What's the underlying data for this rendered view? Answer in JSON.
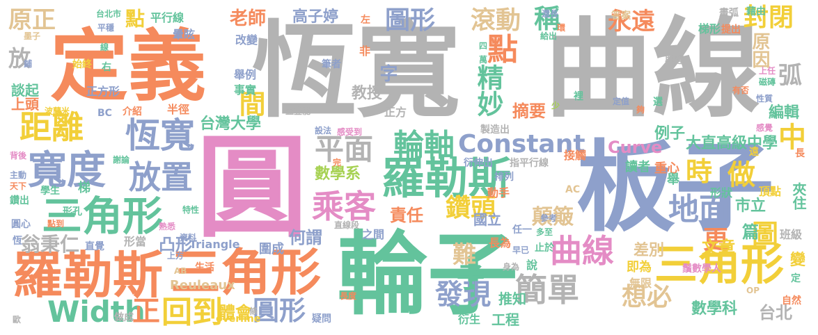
{
  "palette": {
    "orange": "#f58a5c",
    "green": "#63c39c",
    "blue": "#8ea0cb",
    "pink": "#e48cc5",
    "gray": "#b3b3b3",
    "lime": "#a6d152",
    "yellow": "#f2cf39",
    "tan": "#e2c493"
  },
  "words": [
    {
      "text": "恆寬",
      "color": "#b3b3b3"
    },
    {
      "text": "曲線",
      "color": "#b3b3b3"
    },
    {
      "text": "定義",
      "color": "#f58a5c"
    },
    {
      "text": "圓",
      "color": "#e48cc5"
    },
    {
      "text": "板子",
      "color": "#8ea0cb"
    },
    {
      "text": "輪子",
      "color": "#63c39c"
    },
    {
      "text": "羅勒斯",
      "color": "#f58a5c"
    },
    {
      "text": "三角形",
      "color": "#f58a5c"
    },
    {
      "text": "羅勒斯",
      "color": "#63c39c"
    },
    {
      "text": "三角形",
      "color": "#63c39c"
    },
    {
      "text": "寬度",
      "color": "#8ea0cb"
    },
    {
      "text": "三角形",
      "color": "#f2cf39"
    },
    {
      "text": "曲線",
      "color": "#e48cc5"
    },
    {
      "text": "恆寬",
      "color": "#8ea0cb"
    },
    {
      "text": "距離",
      "color": "#f2cf39"
    },
    {
      "text": "原正",
      "color": "#e2c493"
    },
    {
      "text": "放置",
      "color": "#8ea0cb"
    },
    {
      "text": "乘客",
      "color": "#e48cc5"
    },
    {
      "text": "平面",
      "color": "#b3b3b3"
    },
    {
      "text": "輪軸",
      "color": "#63c39c"
    },
    {
      "text": "Constant",
      "color": "#8ea0cb"
    },
    {
      "text": "Width",
      "color": "#63c39c"
    },
    {
      "text": "回到",
      "color": "#f2cf39"
    },
    {
      "text": "圓形",
      "color": "#8ea0cb"
    },
    {
      "text": "正",
      "color": "#f58a5c"
    },
    {
      "text": "發現",
      "color": "#8ea0cb"
    },
    {
      "text": "簡單",
      "color": "#b3b3b3"
    },
    {
      "text": "想必",
      "color": "#e2c493"
    },
    {
      "text": "地面",
      "color": "#8ea0cb"
    },
    {
      "text": "鑽頭",
      "color": "#f2cf39"
    },
    {
      "text": "顛簸",
      "color": "#e2c493"
    },
    {
      "text": "滾動",
      "color": "#e2c493"
    },
    {
      "text": "永遠",
      "color": "#f58a5c"
    },
    {
      "text": "封閉",
      "color": "#f2cf39"
    },
    {
      "text": "點",
      "color": "#f2cf39"
    },
    {
      "text": "點",
      "color": "#f58a5c"
    },
    {
      "text": "圖形",
      "color": "#8ea0cb"
    },
    {
      "text": "稱",
      "color": "#63c39c"
    },
    {
      "text": "間",
      "color": "#f2cf39"
    },
    {
      "text": "字",
      "color": "#8ea0cb"
    },
    {
      "text": "精妙",
      "color": "#63c39c"
    },
    {
      "text": "時",
      "color": "#f2cf39"
    },
    {
      "text": "做",
      "color": "#f2cf39"
    },
    {
      "text": "中",
      "color": "#f2cf39"
    },
    {
      "text": "圖",
      "color": "#f2cf39"
    },
    {
      "text": "更",
      "color": "#f58a5c"
    },
    {
      "text": "弧",
      "color": "#b3b3b3"
    },
    {
      "text": "原因",
      "color": "#e2c493"
    },
    {
      "text": "難",
      "color": "#e2c493"
    },
    {
      "text": "子",
      "color": "#63c39c"
    },
    {
      "text": "台北",
      "color": "#b3b3b3"
    },
    {
      "text": "數學科",
      "color": "#63c39c"
    },
    {
      "text": "市立",
      "color": "#63c39c"
    },
    {
      "text": "夾住",
      "color": "#63c39c"
    },
    {
      "text": "台灣大學",
      "color": "#63c39c"
    },
    {
      "text": "大直高級中學",
      "color": "#63c39c"
    },
    {
      "text": "數學系",
      "color": "#a6d152"
    },
    {
      "text": "Curve",
      "color": "#e48cc5"
    },
    {
      "text": "翁秉仁",
      "color": "#b3b3b3"
    },
    {
      "text": "凸形",
      "color": "#8ea0cb"
    },
    {
      "text": "何謂",
      "color": "#8ea0cb"
    },
    {
      "text": "體會",
      "color": "#f2cf39"
    },
    {
      "text": "Reuleaux",
      "color": "#e2c493"
    },
    {
      "text": "Triangle",
      "color": "#8ea0cb"
    },
    {
      "text": "老師",
      "color": "#f58a5c"
    },
    {
      "text": "高子婷",
      "color": "#8ea0cb"
    },
    {
      "text": "教授",
      "color": "#b3b3b3"
    },
    {
      "text": "摘要",
      "color": "#f58a5c"
    },
    {
      "text": "責任",
      "color": "#f58a5c"
    },
    {
      "text": "文章",
      "color": "#f2cf39"
    },
    {
      "text": "差別",
      "color": "#e2c493"
    },
    {
      "text": "談起",
      "color": "#63c39c"
    },
    {
      "text": "上頭",
      "color": "#f58a5c"
    },
    {
      "text": "放",
      "color": "#b3b3b3"
    },
    {
      "text": "編輯",
      "color": "#63c39c"
    },
    {
      "text": "例子",
      "color": "#63c39c"
    },
    {
      "text": "篇",
      "color": "#63c39c"
    },
    {
      "text": "班級",
      "color": "#b3b3b3"
    },
    {
      "text": "變",
      "color": "#f2cf39"
    },
    {
      "text": "圍成",
      "color": "#8ea0cb"
    },
    {
      "text": "國立",
      "color": "#8ea0cb"
    },
    {
      "text": "鬚數學人",
      "color": "#e48cc5"
    },
    {
      "text": "工程",
      "color": "#63c39c"
    },
    {
      "text": "衍生",
      "color": "#63c39c"
    },
    {
      "text": "推知",
      "color": "#63c39c"
    },
    {
      "text": "即為",
      "color": "#f2cf39"
    },
    {
      "text": "無限",
      "color": "#e2c493"
    },
    {
      "text": "接觸",
      "color": "#f58a5c"
    },
    {
      "text": "讀者",
      "color": "#63c39c"
    },
    {
      "text": "重心",
      "color": "#f58a5c"
    },
    {
      "text": "舉",
      "color": "#63c39c"
    },
    {
      "text": "形狀",
      "color": "#63c39c"
    },
    {
      "text": "頂點",
      "color": "#f2cf39"
    },
    {
      "text": "平行線",
      "color": "#63c39c"
    },
    {
      "text": "暈眩",
      "color": "#8ea0cb"
    },
    {
      "text": "梯形",
      "color": "#63c39c"
    },
    {
      "text": "正方形",
      "color": "#8ea0cb"
    },
    {
      "text": "正方",
      "color": "#b3b3b3"
    },
    {
      "text": "半徑",
      "color": "#f58a5c"
    },
    {
      "text": "介紹",
      "color": "#f58a5c"
    },
    {
      "text": "改變",
      "color": "#8ea0cb"
    },
    {
      "text": "舉例",
      "color": "#8ea0cb"
    },
    {
      "text": "事實",
      "color": "#63c39c"
    },
    {
      "text": "筆者",
      "color": "#8ea0cb"
    },
    {
      "text": "答案",
      "color": "#e2c493"
    },
    {
      "text": "藉由",
      "color": "#63c39c"
    },
    {
      "text": "畫弧",
      "color": "#b3b3b3"
    },
    {
      "text": "提出",
      "color": "#f58a5c"
    },
    {
      "text": "興趣",
      "color": "#b3b3b3"
    },
    {
      "text": "始終",
      "color": "#f2cf39"
    },
    {
      "text": "形孔",
      "color": "#63c39c"
    },
    {
      "text": "圓心",
      "color": "#8ea0cb"
    },
    {
      "text": "點到",
      "color": "#f58a5c"
    },
    {
      "text": "鑽出",
      "color": "#63c39c"
    },
    {
      "text": "背後",
      "color": "#e48cc5"
    },
    {
      "text": "主動",
      "color": "#8ea0cb"
    },
    {
      "text": "學生",
      "color": "#63c39c"
    },
    {
      "text": "梯",
      "color": "#63c39c"
    },
    {
      "text": "動手",
      "color": "#f58a5c"
    },
    {
      "text": "排列",
      "color": "#8ea0cb"
    },
    {
      "text": "指平行線",
      "color": "#b3b3b3"
    },
    {
      "text": "直線段",
      "color": "#b3b3b3"
    },
    {
      "text": "之間",
      "color": "#8ea0cb"
    },
    {
      "text": "長為",
      "color": "#f58a5c"
    },
    {
      "text": "早已",
      "color": "#8ea0cb"
    },
    {
      "text": "止於",
      "color": "#63c39c"
    },
    {
      "text": "身為",
      "color": "#b3b3b3"
    },
    {
      "text": "說",
      "color": "#63c39c"
    },
    {
      "text": "疑問",
      "color": "#8ea0cb"
    },
    {
      "text": "做成",
      "color": "#b3b3b3"
    },
    {
      "text": "生活",
      "color": "#f58a5c"
    },
    {
      "text": "上方",
      "color": "#8ea0cb"
    },
    {
      "text": "AB",
      "color": "#e2c493"
    },
    {
      "text": "AC",
      "color": "#e2c493"
    },
    {
      "text": "BC",
      "color": "#8ea0cb"
    },
    {
      "text": "overline",
      "color": "#f2cf39"
    },
    {
      "text": "直覺",
      "color": "#8ea0cb"
    },
    {
      "text": "形當",
      "color": "#b3b3b3"
    },
    {
      "text": "台北市",
      "color": "#63c39c"
    },
    {
      "text": "平穩",
      "color": "#8ea0cb"
    },
    {
      "text": "自然",
      "color": "#f58a5c"
    },
    {
      "text": "定",
      "color": "#63c39c"
    },
    {
      "text": "製造出",
      "color": "#b3b3b3"
    },
    {
      "text": "設法",
      "color": "#8ea0cb"
    },
    {
      "text": "感受到",
      "color": "#e48cc5"
    },
    {
      "text": "任一",
      "color": "#8ea0cb"
    },
    {
      "text": "多至",
      "color": "#63c39c"
    },
    {
      "text": "參考",
      "color": "#8ea0cb"
    },
    {
      "text": "感覺",
      "color": "#e48cc5"
    },
    {
      "text": "性質",
      "color": "#8ea0cb"
    },
    {
      "text": "有否",
      "color": "#f58a5c"
    },
    {
      "text": "磁磚",
      "color": "#63c39c"
    },
    {
      "text": "上任",
      "color": "#e48cc5"
    },
    {
      "text": "選",
      "color": "#63c39c"
    },
    {
      "text": "裡",
      "color": "#63c39c"
    },
    {
      "text": "少",
      "color": "#a6d152"
    },
    {
      "text": "定值",
      "color": "#8ea0cb"
    },
    {
      "text": "還長",
      "color": "#8ea0cb"
    },
    {
      "text": "給出",
      "color": "#63c39c"
    },
    {
      "text": "環",
      "color": "#f58a5c"
    },
    {
      "text": "萬",
      "color": "#63c39c"
    },
    {
      "text": "四",
      "color": "#63c39c"
    },
    {
      "text": "非",
      "color": "#f58a5c"
    },
    {
      "text": "左",
      "color": "#f58a5c"
    },
    {
      "text": "右",
      "color": "#63c39c"
    },
    {
      "text": "墨子",
      "color": "#e2c493"
    },
    {
      "text": "線",
      "color": "#63c39c"
    },
    {
      "text": "鋪",
      "color": "#8ea0cb"
    },
    {
      "text": "波蘭米",
      "color": "#f2cf39"
    },
    {
      "text": "蓋登能",
      "color": "#b3b3b3"
    },
    {
      "text": "完",
      "color": "#f58a5c"
    },
    {
      "text": "衍伸出",
      "color": "#8ea0cb"
    },
    {
      "text": "熟悉",
      "color": "#e48cc5"
    },
    {
      "text": "特性",
      "color": "#63c39c"
    },
    {
      "text": "資料",
      "color": "#8ea0cb"
    },
    {
      "text": "長度",
      "color": "#f58a5c"
    },
    {
      "text": "條",
      "color": "#b3b3b3"
    },
    {
      "text": "恆",
      "color": "#8ea0cb"
    },
    {
      "text": "歐",
      "color": "#b3b3b3"
    },
    {
      "text": "OP",
      "color": "#e2c493"
    },
    {
      "text": "天下",
      "color": "#f58a5c"
    },
    {
      "text": "遠",
      "color": "#f2cf39"
    },
    {
      "text": "謝論",
      "color": "#63c39c"
    },
    {
      "text": "長",
      "color": "#f58a5c"
    },
    {
      "text": "夠",
      "color": "#f58a5c"
    }
  ]
}
